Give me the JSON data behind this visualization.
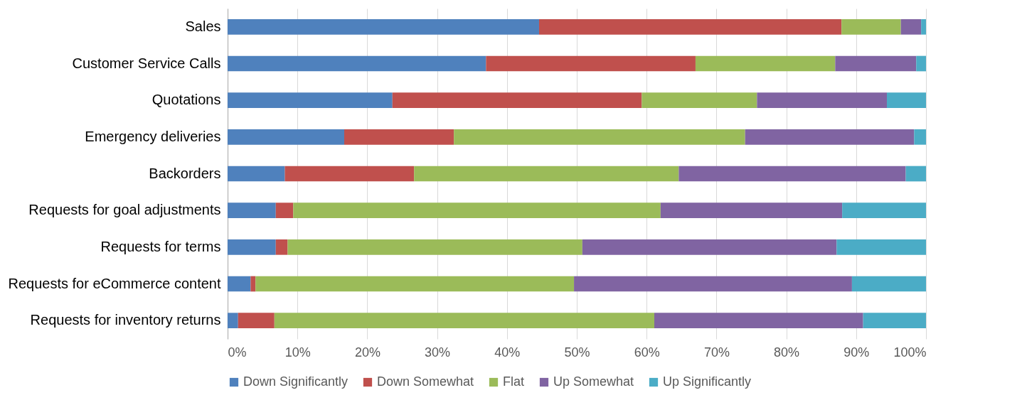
{
  "chart_data": {
    "type": "bar",
    "orientation": "horizontal",
    "stacked": true,
    "categories": [
      "Sales",
      "Customer Service Calls",
      "Quotations",
      "Emergency deliveries",
      "Backorders",
      "Requests for goal adjustments",
      "Requests for terms",
      "Requests for eCommerce content",
      "Requests for inventory returns"
    ],
    "series": [
      {
        "name": "Down Significantly",
        "color": "#4f81bd",
        "values": [
          44.6,
          37.0,
          23.6,
          16.7,
          8.2,
          6.9,
          6.9,
          3.3,
          1.5
        ]
      },
      {
        "name": "Down Somewhat",
        "color": "#c0504d",
        "values": [
          43.3,
          30.0,
          35.7,
          15.7,
          18.5,
          2.5,
          1.7,
          0.7,
          5.2
        ]
      },
      {
        "name": "Flat",
        "color": "#9bbb59",
        "values": [
          8.5,
          20.0,
          16.5,
          41.7,
          37.9,
          52.6,
          42.2,
          45.6,
          54.4
        ]
      },
      {
        "name": "Up Somewhat",
        "color": "#8064a2",
        "values": [
          2.9,
          11.6,
          18.6,
          24.2,
          32.5,
          26.0,
          36.4,
          39.8,
          29.9
        ]
      },
      {
        "name": "Up Significantly",
        "color": "#4bacc6",
        "values": [
          0.7,
          1.4,
          5.6,
          1.7,
          2.9,
          12.0,
          12.8,
          10.6,
          9.0
        ]
      }
    ],
    "xlim": [
      0,
      100
    ],
    "xticks": [
      {
        "value": 0,
        "label": "0%"
      },
      {
        "value": 10,
        "label": "10%"
      },
      {
        "value": 20,
        "label": "20%"
      },
      {
        "value": 30,
        "label": "30%"
      },
      {
        "value": 40,
        "label": "40%"
      },
      {
        "value": 50,
        "label": "50%"
      },
      {
        "value": 60,
        "label": "60%"
      },
      {
        "value": 70,
        "label": "70%"
      },
      {
        "value": 80,
        "label": "80%"
      },
      {
        "value": 90,
        "label": "90%"
      },
      {
        "value": 100,
        "label": "100%"
      }
    ],
    "grid": "x",
    "legend": "bottom"
  }
}
